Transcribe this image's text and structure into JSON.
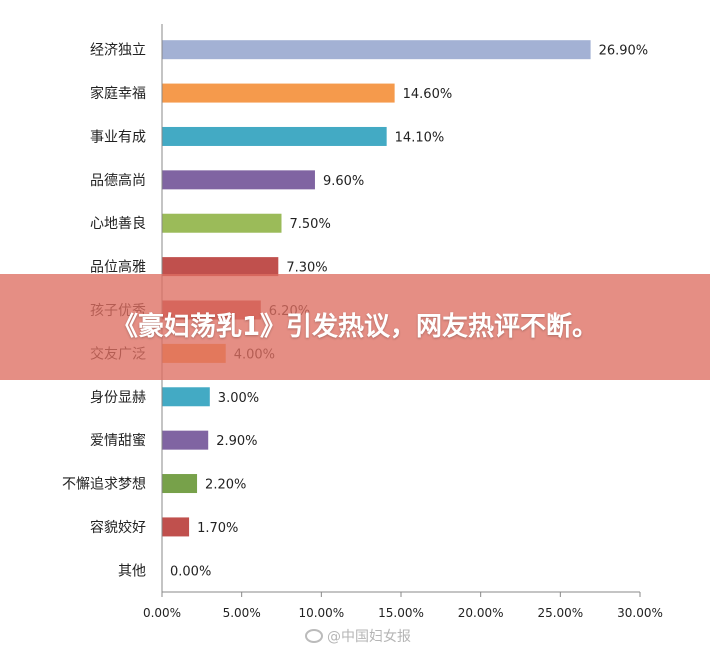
{
  "chart_data": {
    "type": "bar",
    "orientation": "horizontal",
    "categories": [
      "经济独立",
      "家庭幸福",
      "事业有成",
      "品德高尚",
      "心地善良",
      "品位高雅",
      "孩子优秀",
      "交友广泛",
      "身份显赫",
      "爱情甜蜜",
      "不懈追求梦想",
      "容貌姣好",
      "其他"
    ],
    "values": [
      26.9,
      14.6,
      14.1,
      9.6,
      7.5,
      7.3,
      6.2,
      4.0,
      3.0,
      2.9,
      2.2,
      1.7,
      0.0
    ],
    "value_labels": [
      "26.90%",
      "14.60%",
      "14.10%",
      "9.60%",
      "7.50%",
      "7.30%",
      "6.20%",
      "4.00%",
      "3.00%",
      "2.90%",
      "2.20%",
      "1.70%",
      "0.00%"
    ],
    "colors": [
      "#a3b1d4",
      "#f59a4c",
      "#43aac4",
      "#8064a2",
      "#9bbb59",
      "#c0504d",
      "#c0504d",
      "#f59a4c",
      "#43aac4",
      "#8064a2",
      "#77a14a",
      "#c0504d",
      "#43aac4"
    ],
    "xlim": [
      0,
      30
    ],
    "ticks": [
      "0.00%",
      "5.00%",
      "10.00%",
      "15.00%",
      "20.00%",
      "25.00%",
      "30.00%"
    ],
    "tick_values": [
      0,
      5,
      10,
      15,
      20,
      25,
      30
    ],
    "grid": false,
    "legend": "none"
  },
  "overlay": {
    "banner_text": "《豪妇荡乳1》引发热议，网友热评不断。",
    "banner_color": "#de6e62"
  },
  "watermark": {
    "text": "@中国妇女报"
  }
}
